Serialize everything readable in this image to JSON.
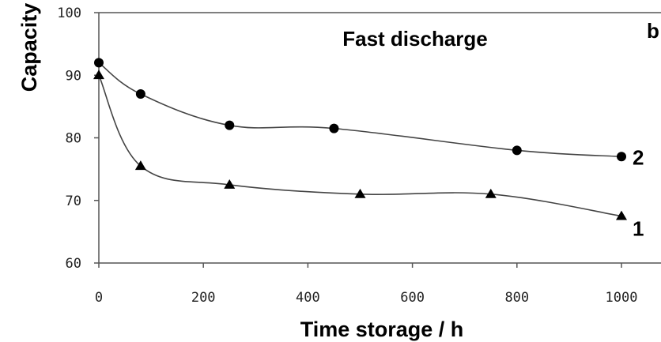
{
  "chart_data": {
    "type": "line",
    "title": "Fast discharge",
    "panel_label": "b",
    "xlabel": "Time storage / h",
    "ylabel": "Capacity",
    "xlim": [
      0,
      1000
    ],
    "ylim": [
      60,
      100
    ],
    "xticks": [
      "0",
      "200",
      "400",
      "600",
      "800",
      "1000"
    ],
    "yticks": [
      "60",
      "70",
      "80",
      "90",
      "100"
    ],
    "grid": false,
    "series": [
      {
        "name": "1",
        "marker": "triangle",
        "x": [
          0,
          80,
          250,
          500,
          750,
          1000
        ],
        "y": [
          90,
          75.5,
          72.5,
          71,
          71,
          67.5
        ]
      },
      {
        "name": "2",
        "marker": "circle",
        "x": [
          0,
          80,
          250,
          450,
          800,
          1000
        ],
        "y": [
          92,
          87,
          82,
          81.5,
          78,
          77
        ]
      }
    ],
    "colors": {
      "line": "#444444",
      "marker": "#000000",
      "axis": "#555555"
    }
  }
}
